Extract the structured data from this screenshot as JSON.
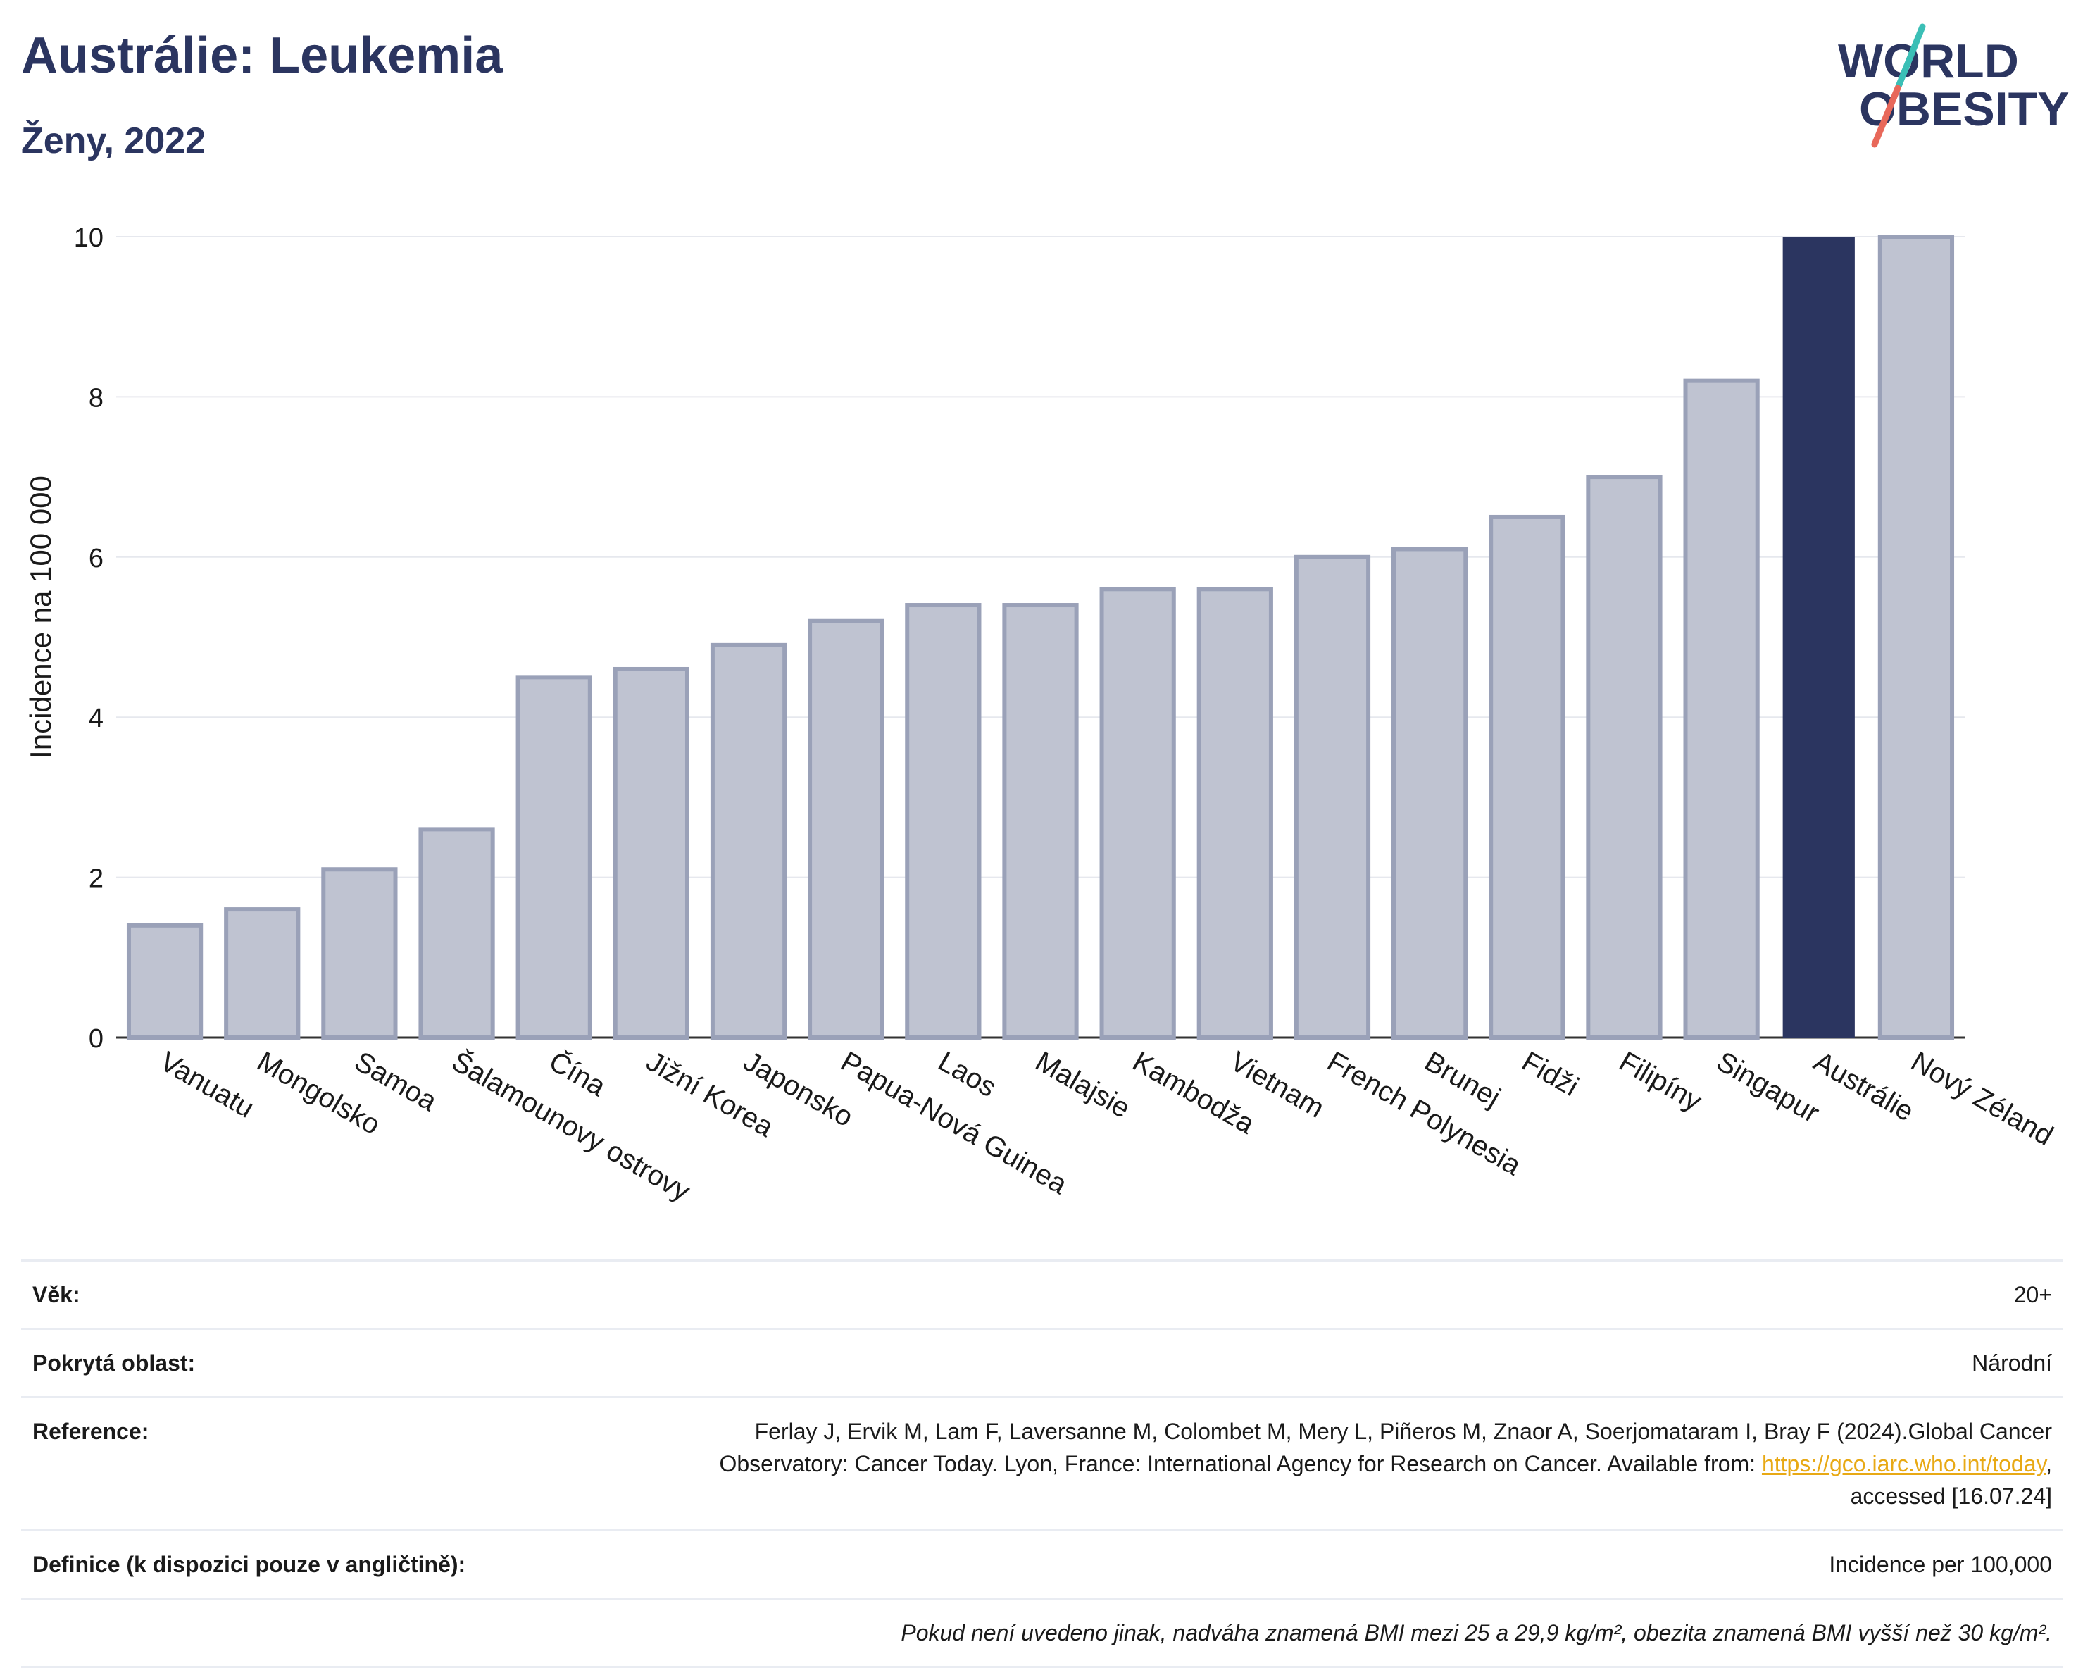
{
  "header": {
    "title": "Austrálie: Leukemia",
    "subtitle": "Ženy, 2022",
    "logo_line1": "WORLD",
    "logo_line2": "OBESITY"
  },
  "colors": {
    "title": "#2b3560",
    "bar_default": "#bfc3d1",
    "bar_default_stroke": "#9aa1b8",
    "bar_highlight": "#2b3560",
    "link": "#e8a915",
    "logo_teal": "#3bbfb6",
    "logo_coral": "#e8685a"
  },
  "chart_data": {
    "type": "bar",
    "title": "Austrálie: Leukemia",
    "subtitle": "Ženy, 2022",
    "xlabel": "",
    "ylabel": "Incidence na 100 000",
    "ylim": [
      0,
      10
    ],
    "yticks": [
      0,
      2,
      4,
      6,
      8,
      10
    ],
    "grid": true,
    "highlight": "Austrálie",
    "categories": [
      "Vanuatu",
      "Mongolsko",
      "Samoa",
      "Šalamounovy ostrovy",
      "Čína",
      "Jižní Korea",
      "Japonsko",
      "Papua-Nová Guinea",
      "Laos",
      "Malajsie",
      "Kambodža",
      "Vietnam",
      "French Polynesia",
      "Brunej",
      "Fidži",
      "Filipíny",
      "Singapur",
      "Austrálie",
      "Nový Zéland"
    ],
    "values": [
      1.4,
      1.6,
      2.1,
      2.6,
      4.5,
      4.6,
      4.9,
      5.2,
      5.4,
      5.4,
      5.6,
      5.6,
      6.0,
      6.1,
      6.5,
      7.0,
      8.2,
      10.0,
      10.0
    ]
  },
  "info": {
    "age_label": "Věk:",
    "age_value": "20+",
    "coverage_label": "Pokrytá oblast:",
    "coverage_value": "Národní",
    "reference_label": "Reference:",
    "reference_line1": "Ferlay J, Ervik M, Lam F, Laversanne M, Colombet M, Mery L, Piñeros M, Znaor A, Soerjomataram I, Bray F (2024).Global Cancer",
    "reference_line2_pre": "Observatory: Cancer Today. Lyon, France: International Agency for Research on Cancer. Available from: ",
    "reference_link": "https://gco.iarc.who.int/today",
    "reference_line2_post": ",",
    "reference_line3": "accessed [16.07.24]",
    "definition_label": "Definice (k dispozici pouze v angličtině):",
    "definition_value": "Incidence per 100,000",
    "note": "Pokud není uvedeno jinak, nadváha znamená BMI mezi 25 a 29,9 kg/m², obezita znamená BMI vyšší než 30 kg/m²."
  }
}
